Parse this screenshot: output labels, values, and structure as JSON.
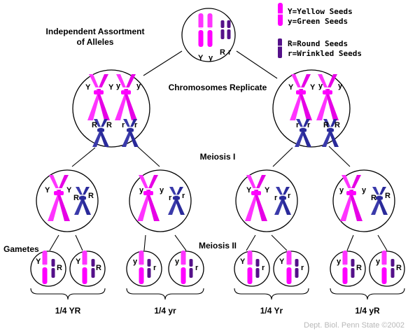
{
  "title_line1": "Independent Assortment",
  "title_line2": "of Alleles",
  "legend": {
    "yellow": "Y=Yellow Seeds",
    "green": "y=Green Seeds",
    "round": "R=Round Seeds",
    "wrinkled": "r=Wrinkled Seeds"
  },
  "stages": {
    "replicate": "Chromosomes Replicate",
    "meiosis1": "Meiosis I",
    "meiosis2": "Meiosis II",
    "gametes": "Gametes"
  },
  "alleles": {
    "Y": "Y",
    "y": "y",
    "R": "R",
    "r": "r"
  },
  "fractions": [
    "1/4 YR",
    "1/4 yr",
    "1/4 Yr",
    "1/4 yR"
  ],
  "credit": "Dept. Biol. Penn State ©2002",
  "colors": {
    "magenta": "#ff00ff",
    "magenta_light": "#ff66ff",
    "navy": "#2a2a9a",
    "navy_light": "#5a5acc",
    "purple": "#55118a"
  }
}
